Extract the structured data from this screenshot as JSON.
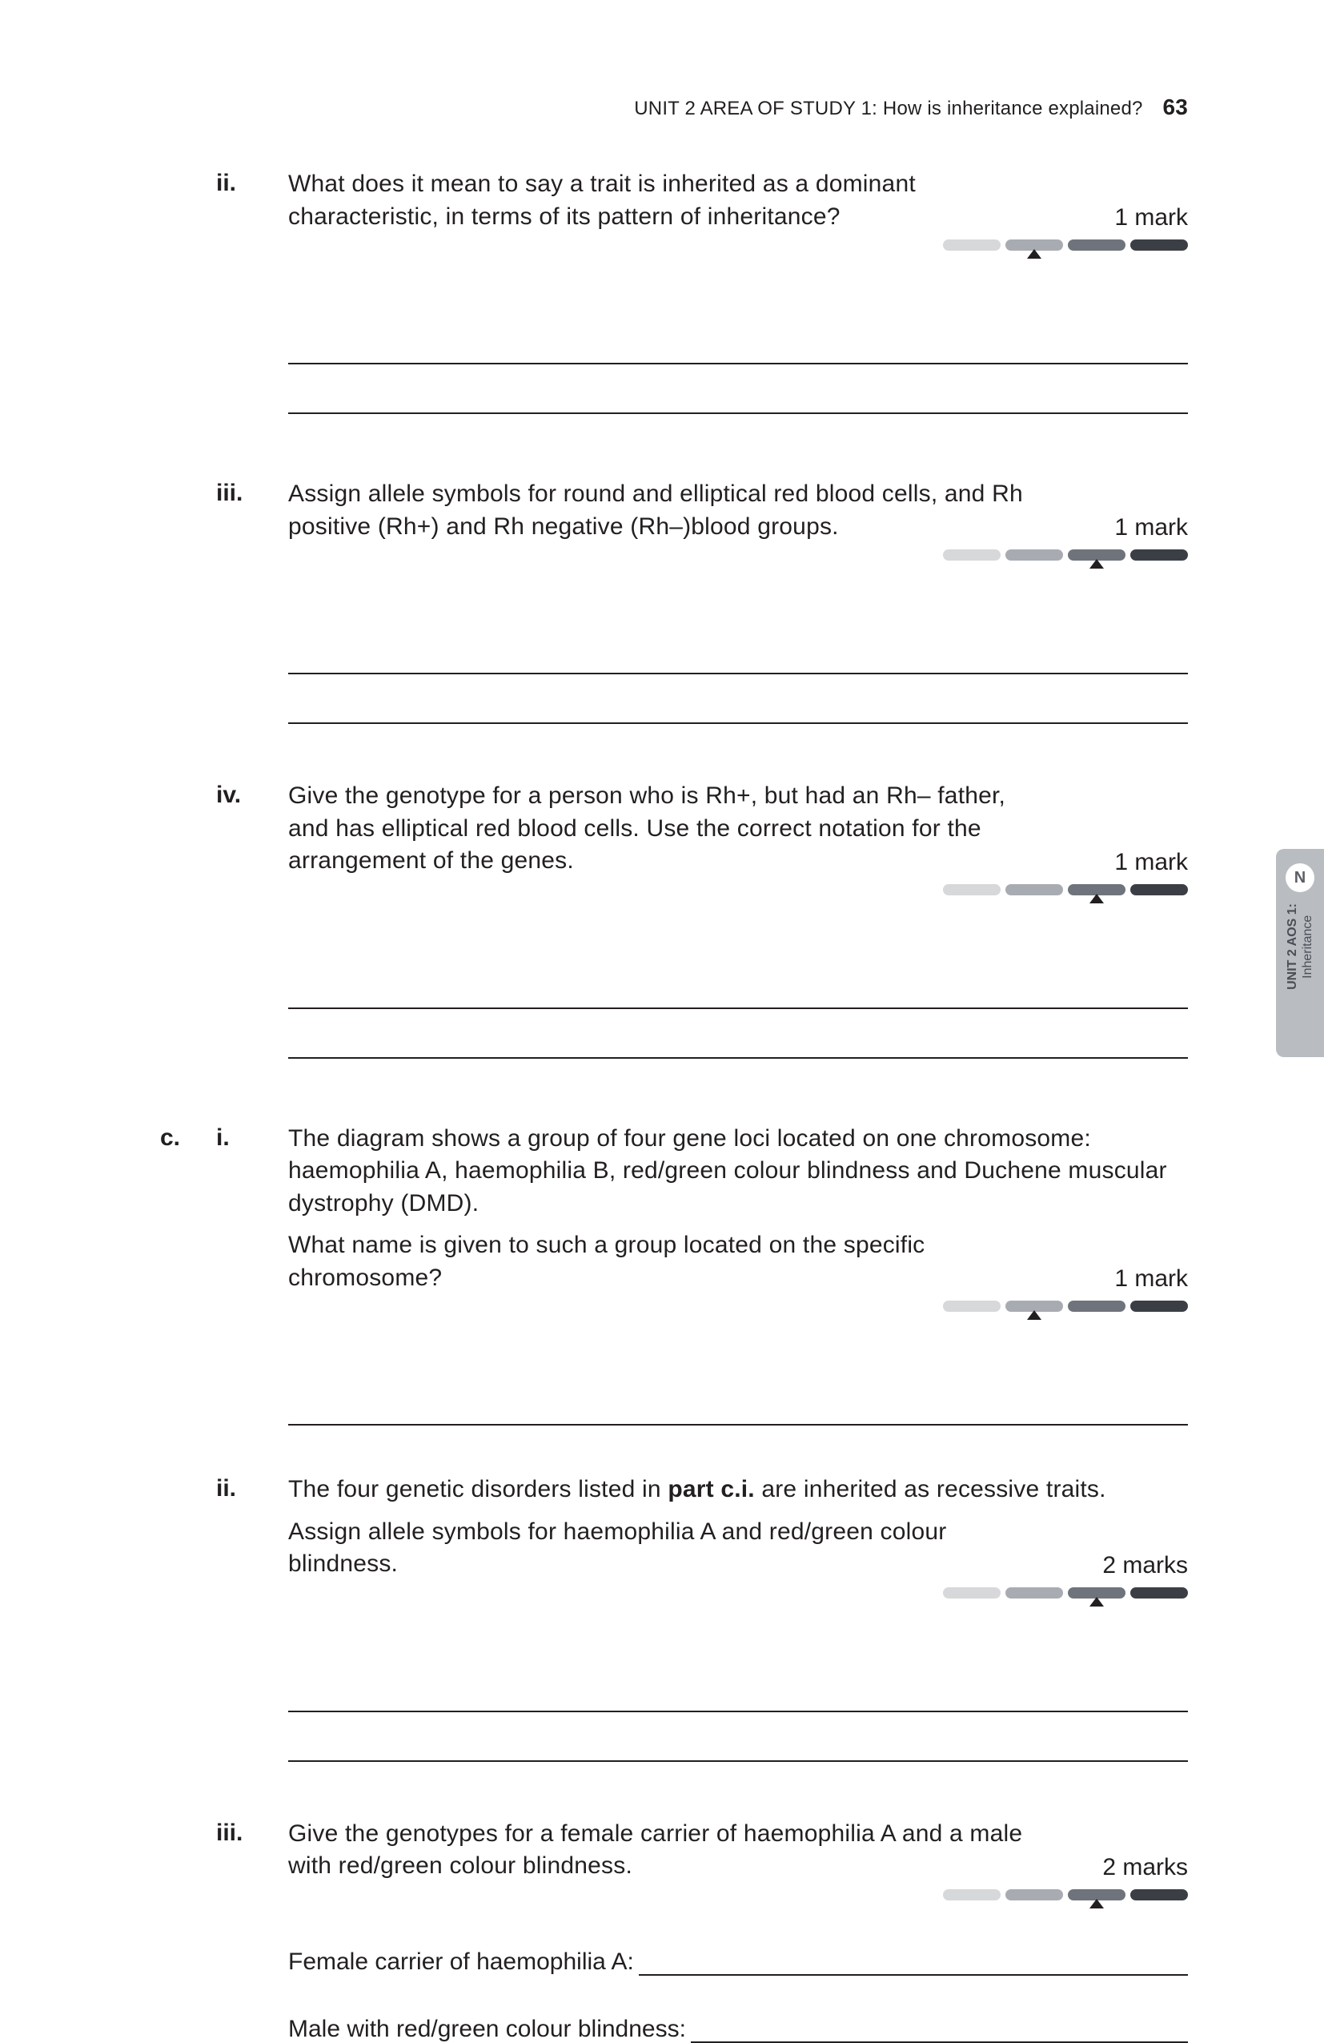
{
  "header": {
    "running_head": "UNIT 2 AREA OF STUDY 1: How is inheritance explained?",
    "page_number": "63"
  },
  "sidebar": {
    "badge": "N",
    "line1_bold": "UNIT 2 AOS 1:",
    "line2": "Inheritance"
  },
  "difficulty_colors": {
    "seg1": "#d6d8da",
    "seg2": "#a8acb2",
    "seg3": "#6f747c",
    "seg4": "#3b3f45",
    "pointer": "#231f20"
  },
  "questions": [
    {
      "letter": "",
      "roman": "ii.",
      "text": "What does it mean to say a trait is inherited as a dominant characteristic, in terms of its pattern of inheritance?",
      "marks": "1 mark",
      "pointer_segment": 2,
      "answer_lines": 2,
      "block_gap_after": 80
    },
    {
      "letter": "",
      "roman": "iii.",
      "text": "Assign allele symbols for round and elliptical red blood cells, and Rh positive (Rh+) and Rh negative (Rh–)blood groups.",
      "marks": "1 mark",
      "pointer_segment": 3,
      "answer_lines": 2,
      "block_gap_after": 70
    },
    {
      "letter": "",
      "roman": "iv.",
      "text": "Give the genotype for a person who is Rh+, but had an Rh– father, and has elliptical red blood cells. Use the correct notation for the arrangement of the genes.",
      "marks": "1 mark",
      "pointer_segment": 3,
      "answer_lines": 2,
      "block_gap_after": 80
    },
    {
      "letter": "c.",
      "roman": "i.",
      "text_para1": "The diagram shows a group of four gene loci located on one chromosome: haemophilia A, haemophilia B, red/green colour blindness and Duchene muscular dystrophy (DMD).",
      "text_para2": "What name is given to such a group located on the specific chromosome?",
      "marks": "1 mark",
      "pointer_segment": 2,
      "answer_lines": 1,
      "block_gap_after": 60
    },
    {
      "letter": "",
      "roman": "ii.",
      "text_para1_pre": "The four genetic disorders listed in ",
      "text_para1_bold": "part c.i.",
      "text_para1_post": " are inherited as recessive traits.",
      "text_para2": "Assign allele symbols for haemophilia A and red/green colour blindness.",
      "marks": "2 marks",
      "pointer_segment": 3,
      "answer_lines": 2,
      "block_gap_after": 70
    },
    {
      "letter": "",
      "roman": "iii.",
      "text": "Give the genotypes for a female carrier of haemophilia A and a male with red/green colour blindness.",
      "marks": "2 marks",
      "pointer_segment": 3,
      "answer_lines": 0,
      "inline_answers": [
        "Female carrier of haemophilia A:",
        "Male with red/green colour blindness:"
      ],
      "block_gap_after": 0
    }
  ]
}
